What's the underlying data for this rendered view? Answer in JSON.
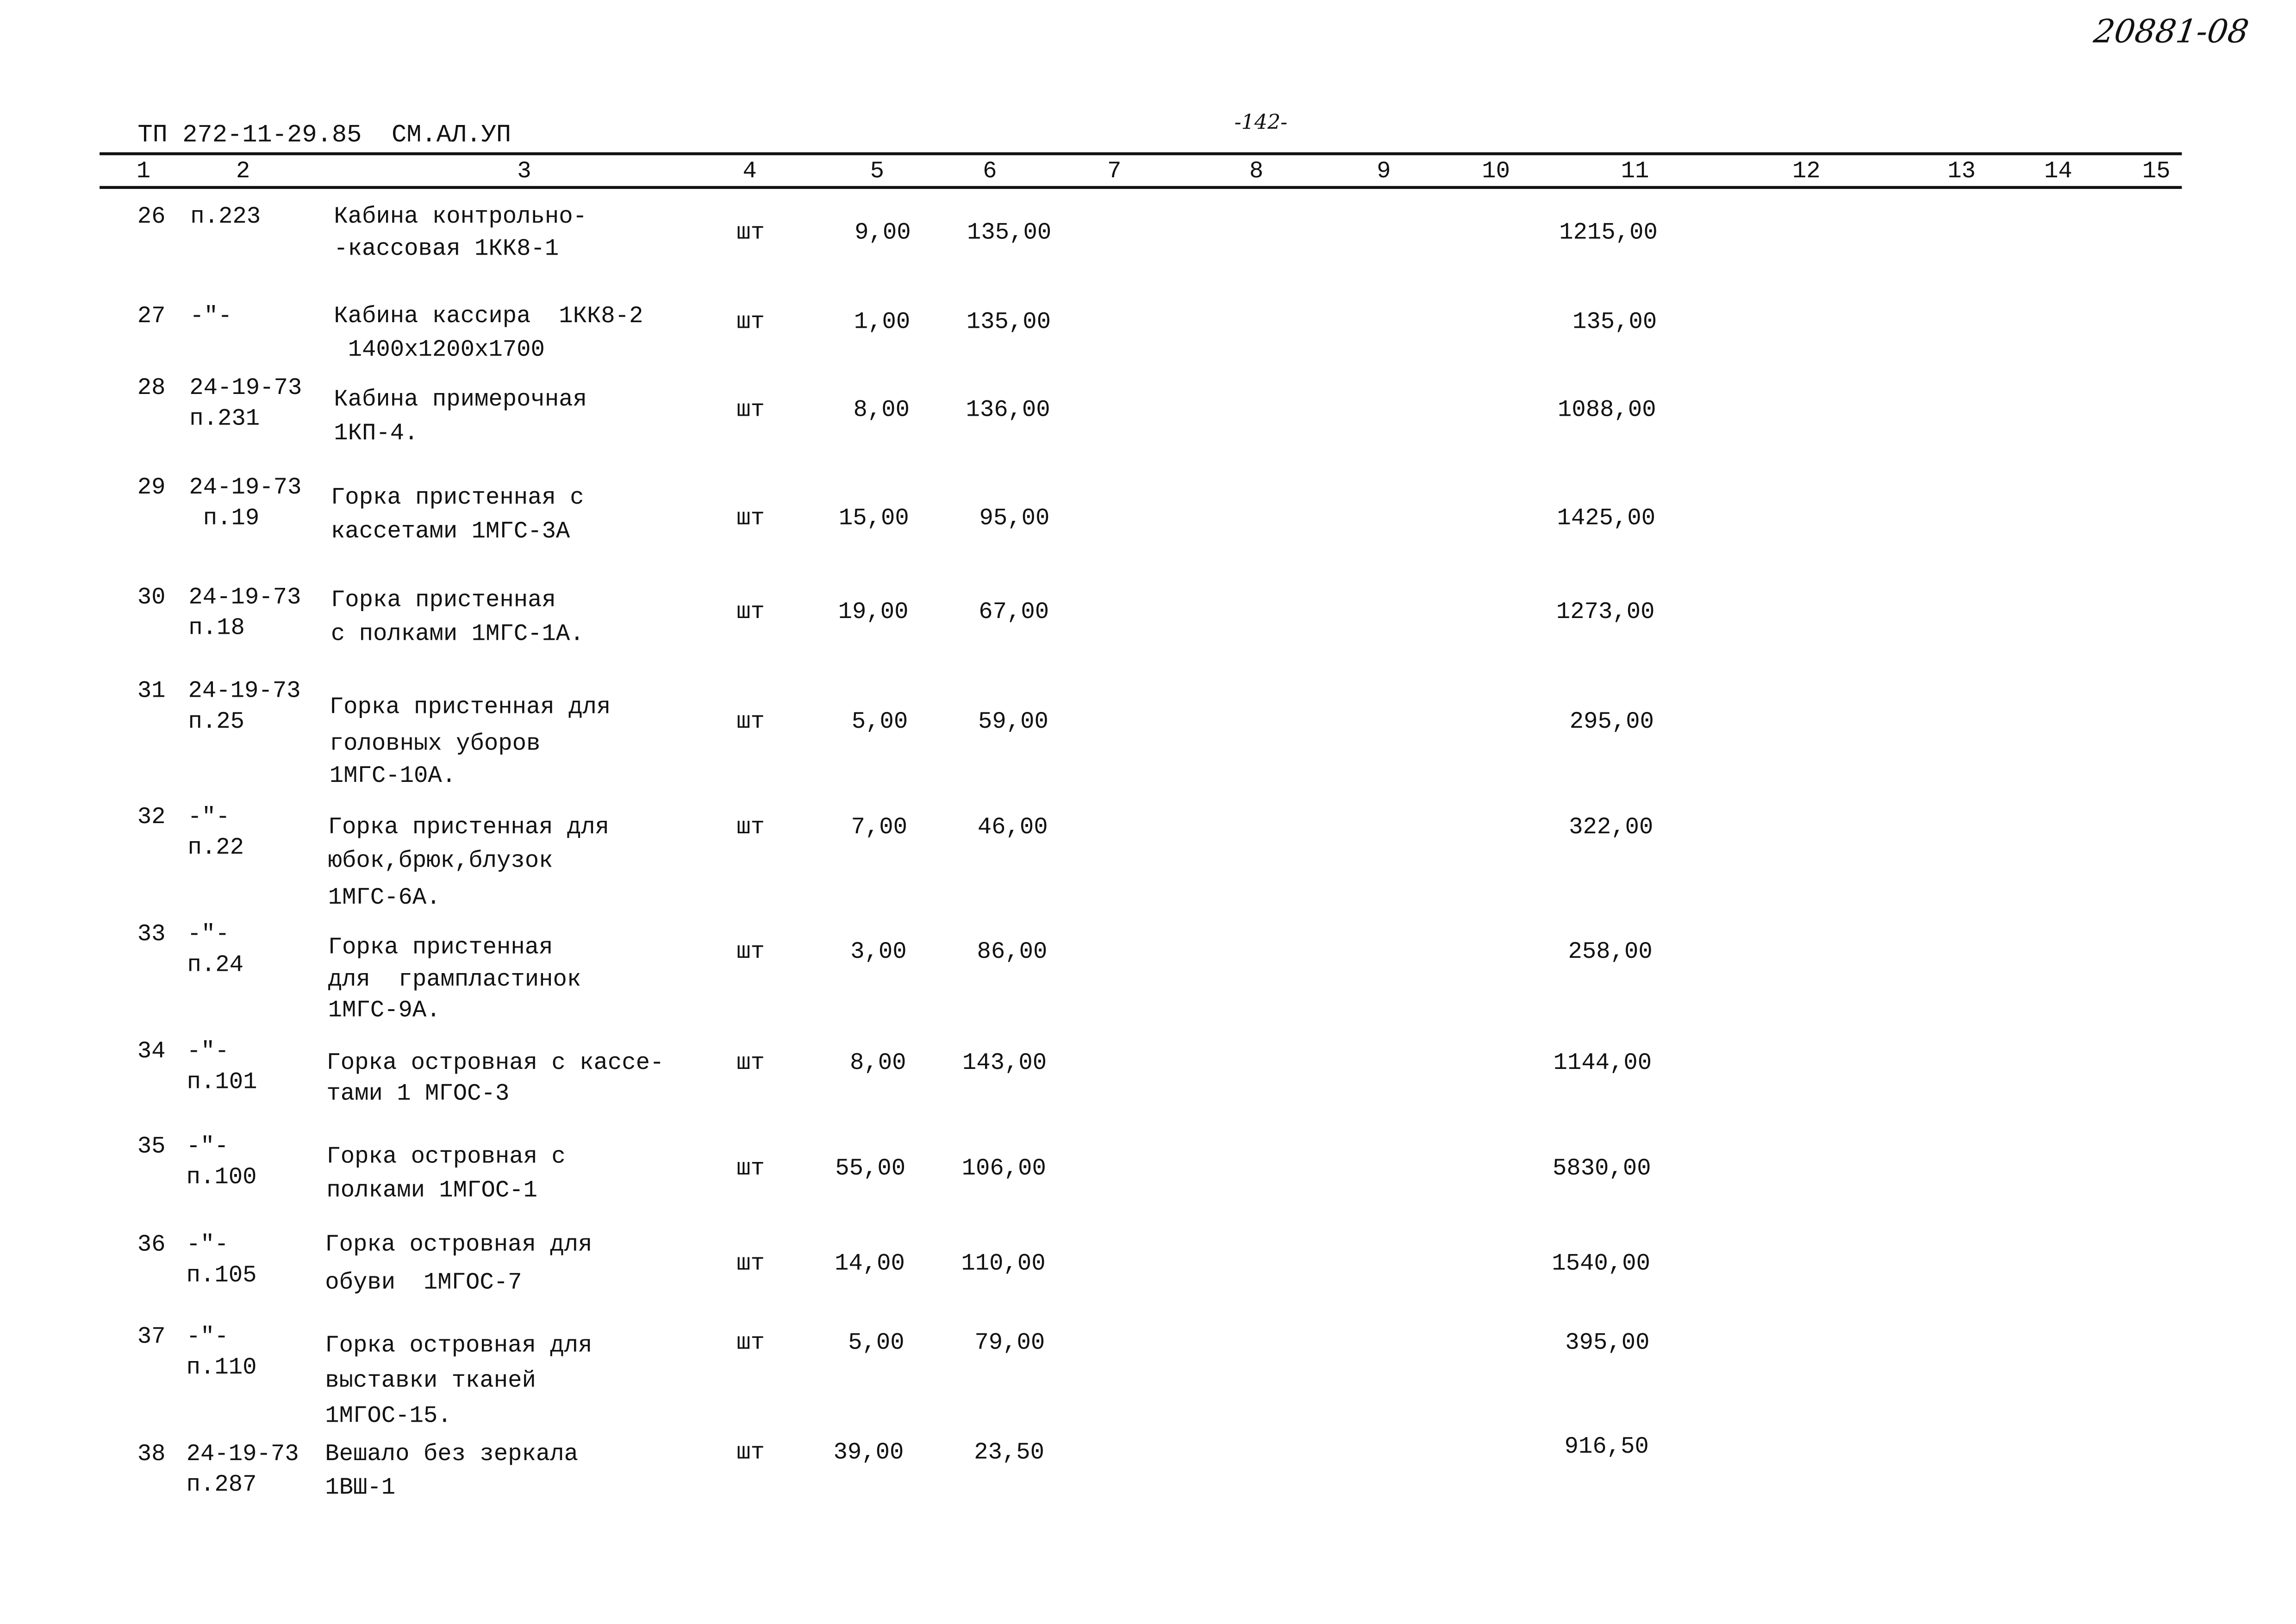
{
  "stamp": "20881-08",
  "header": {
    "doc_code": "ТП 272-11-29.85  СМ.АЛ.УП",
    "page_number": "-142-"
  },
  "column_numbers": [
    "1",
    "2",
    "3",
    "4",
    "5",
    "6",
    "7",
    "8",
    "9",
    "10",
    "11",
    "12",
    "13",
    "14",
    "15"
  ],
  "rows": [
    {
      "no": "26",
      "ref": [
        "п.223"
      ],
      "desc": [
        "Кабина контрольно-",
        "-кассовая 1КК8-1"
      ],
      "unit": "шт",
      "qty": "9,00",
      "price": "135,00",
      "total": "1215,00"
    },
    {
      "no": "27",
      "ref": [
        "-\"-"
      ],
      "desc": [
        "Кабина кассира  1КК8-2",
        " 1400х1200х1700"
      ],
      "unit": "шт",
      "qty": "1,00",
      "price": "135,00",
      "total": "135,00"
    },
    {
      "no": "28",
      "ref": [
        "24-19-73",
        "п.231"
      ],
      "desc": [
        "Кабина примерочная",
        "1КП-4."
      ],
      "unit": "шт",
      "qty": "8,00",
      "price": "136,00",
      "total": "1088,00"
    },
    {
      "no": "29",
      "ref": [
        "24-19-73",
        " п.19"
      ],
      "desc": [
        "Горка пристенная с",
        "кассетами 1МГС-3А"
      ],
      "unit": "шт",
      "qty": "15,00",
      "price": "95,00",
      "total": "1425,00"
    },
    {
      "no": "30",
      "ref": [
        "24-19-73",
        "п.18"
      ],
      "desc": [
        "Горка пристенная",
        "с полками 1МГС-1А."
      ],
      "unit": "шт",
      "qty": "19,00",
      "price": "67,00",
      "total": "1273,00"
    },
    {
      "no": "31",
      "ref": [
        "24-19-73",
        "п.25"
      ],
      "desc": [
        "Горка пристенная для",
        "головных уборов",
        "1МГС-10А."
      ],
      "unit": "шт",
      "qty": "5,00",
      "price": "59,00",
      "total": "295,00"
    },
    {
      "no": "32",
      "ref": [
        "-\"-",
        "п.22"
      ],
      "desc": [
        "Горка пристенная для",
        "юбок,брюк,блузок",
        "1МГС-6А."
      ],
      "unit": "шт",
      "qty": "7,00",
      "price": "46,00",
      "total": "322,00"
    },
    {
      "no": "33",
      "ref": [
        "-\"-",
        "п.24"
      ],
      "desc": [
        "Горка пристенная",
        "для  грампластинок",
        "1МГС-9А."
      ],
      "unit": "шт",
      "qty": "3,00",
      "price": "86,00",
      "total": "258,00"
    },
    {
      "no": "34",
      "ref": [
        "-\"-",
        "п.101"
      ],
      "desc": [
        "Горка островная с кассе-",
        "тами 1 МГОС-3"
      ],
      "unit": "шт",
      "qty": "8,00",
      "price": "143,00",
      "total": "1144,00"
    },
    {
      "no": "35",
      "ref": [
        "-\"-",
        "п.100"
      ],
      "desc": [
        "Горка островная с",
        "полками 1МГОС-1"
      ],
      "unit": "шт",
      "qty": "55,00",
      "price": "106,00",
      "total": "5830,00"
    },
    {
      "no": "36",
      "ref": [
        "-\"-",
        "п.105"
      ],
      "desc": [
        "Горка островная для",
        "обуви  1МГОС-7"
      ],
      "unit": "шт",
      "qty": "14,00",
      "price": "110,00",
      "total": "1540,00"
    },
    {
      "no": "37",
      "ref": [
        "-\"-",
        "п.110"
      ],
      "desc": [
        "Горка островная для",
        "выставки тканей",
        "1МГОС-15."
      ],
      "unit": "шт",
      "qty": "5,00",
      "price": "79,00",
      "total": "395,00"
    },
    {
      "no": "38",
      "ref": [
        "24-19-73",
        "п.287"
      ],
      "desc": [
        "Вешало без зеркала",
        "1ВШ-1"
      ],
      "unit": "шт",
      "qty": "39,00",
      "price": "23,50",
      "total": "916,50"
    }
  ]
}
